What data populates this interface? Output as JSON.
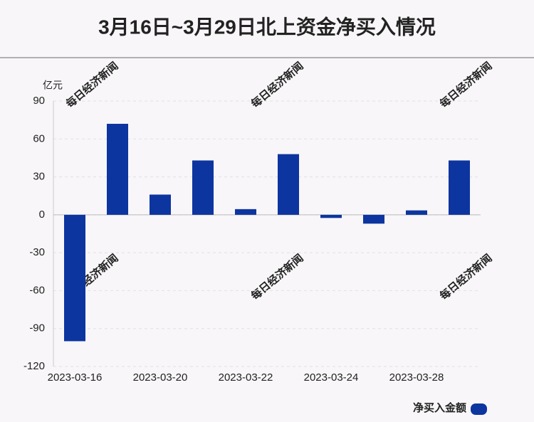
{
  "chart_data": {
    "type": "bar",
    "title": "3月16日~3月29日北上资金净买入情况",
    "y_unit": "亿元",
    "watermark": "每日经济新闻",
    "categories": [
      "2023-03-16",
      null,
      "2023-03-20",
      null,
      "2023-03-22",
      null,
      "2023-03-24",
      null,
      "2023-03-28",
      null
    ],
    "series": [
      {
        "name": "净买入金额",
        "color": "#0d35a0",
        "values": [
          -100,
          72,
          16,
          43,
          4.5,
          48,
          -2.5,
          -7,
          3.5,
          43
        ]
      }
    ],
    "ylim": [
      -120,
      90
    ],
    "yticks": [
      -120,
      -90,
      -60,
      -30,
      0,
      30,
      60,
      90
    ],
    "grid": true,
    "legend": "bottom-right"
  }
}
